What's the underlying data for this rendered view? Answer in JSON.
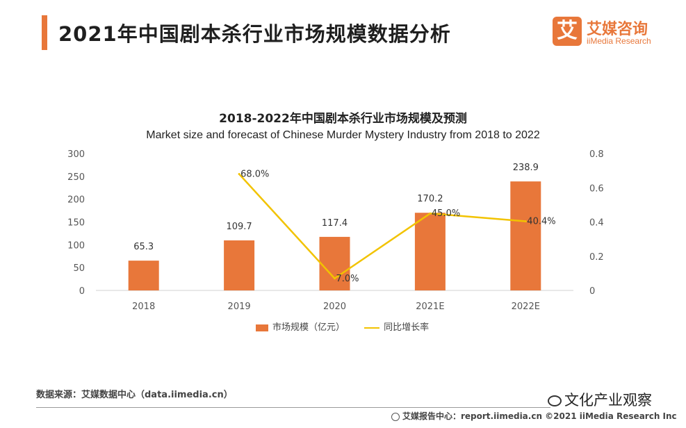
{
  "header": {
    "title": "2021年中国剧本杀行业市场规模数据分析",
    "logo_mark": "艾",
    "logo_cn": "艾媒咨询",
    "logo_en": "iiMedia Research"
  },
  "colors": {
    "accent": "#e8773a",
    "bar": "#e8773a",
    "line": "#f2c300"
  },
  "chart_data": {
    "type": "bar",
    "title": "2018-2022年中国剧本杀行业市场规模及预测",
    "subtitle": "Market size and forecast of Chinese Murder Mystery Industry from 2018 to 2022",
    "categories": [
      "2018",
      "2019",
      "2020",
      "2021E",
      "2022E"
    ],
    "series": [
      {
        "name": "市场规模（亿元）",
        "type": "bar",
        "axis": "left",
        "values": [
          65.3,
          109.7,
          117.4,
          170.2,
          238.9
        ],
        "labels": [
          "65.3",
          "109.7",
          "117.4",
          "170.2",
          "238.9"
        ]
      },
      {
        "name": "同比增长率",
        "type": "line",
        "axis": "right",
        "values": [
          null,
          0.68,
          0.07,
          0.45,
          0.404
        ],
        "labels": [
          "",
          "68.0%",
          "7.0%",
          "45.0%",
          "40.4%"
        ]
      }
    ],
    "y_left": {
      "ylim": [
        0,
        300
      ],
      "ticks": [
        "0",
        "50",
        "100",
        "150",
        "200",
        "250",
        "300"
      ]
    },
    "y_right": {
      "ylim": [
        0,
        0.8
      ],
      "ticks": [
        "0",
        "0.2",
        "0.4",
        "0.6",
        "0.8"
      ]
    },
    "grid": false,
    "legend": "bottom-center"
  },
  "source": "数据来源：艾媒数据中心（data.iimedia.cn）",
  "footer": {
    "text": "艾媒报告中心：report.iimedia.cn  ©2021  iiMedia Research  Inc",
    "watermark": "文化产业观察"
  }
}
